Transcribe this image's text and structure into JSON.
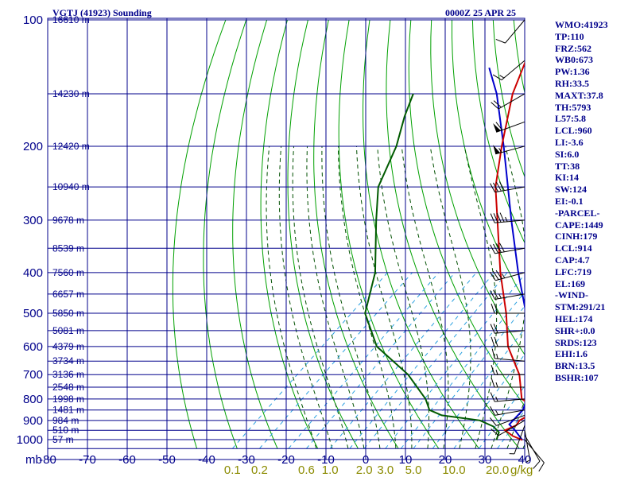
{
  "header": {
    "title": "VGTJ (41923) Sounding",
    "datetime": "0000Z 25 APR 25"
  },
  "indices": [
    "WMO:41923",
    "TP:110",
    "FRZ:562",
    "WB0:673",
    "PW:1.36",
    "RH:33.5",
    "MAXT:37.8",
    "TH:5793",
    "L57:5.8",
    "LCL:960",
    "LI:-3.6",
    "SI:6.0",
    "TT:38",
    "KI:14",
    "SW:124",
    "EI:-0.1",
    "-PARCEL-",
    "CAPE:1449",
    "CINH:179",
    "LCL:914",
    "CAP:4.7",
    "LFC:719",
    "EL:169",
    "-WIND-",
    "STM:291/21",
    "HEL:174",
    "SHR+:0.0",
    "SRDS:123",
    "EHI:1.6",
    "BRN:13.5",
    "BSHR:107"
  ],
  "colors": {
    "grid": "#00008b",
    "temperature": "#cc0000",
    "dewpoint": "#005a00",
    "parcel": "#0000cc",
    "dry_adiabat": "#00a000",
    "moist_adiabat": "#005000",
    "mixing_ratio": "#2aa0e0",
    "wind_barb": "#000000",
    "axis_text": "#00008b",
    "mixing_ratio_text": "#8b8b00"
  },
  "chart_data": {
    "type": "skew-t log-p sounding",
    "pressure_unit_label": "mb",
    "pressure_ticks": [
      100,
      200,
      300,
      400,
      500,
      600,
      700,
      800,
      900,
      1000
    ],
    "temperature_ticks": [
      -80,
      -70,
      -60,
      -50,
      -40,
      -30,
      -20,
      -10,
      0,
      10,
      20,
      30,
      40
    ],
    "mixing_ratio_unit": "g/kg",
    "mixing_ratio_labels": [
      "0.1",
      "0.2",
      "0.6",
      "1.0",
      "2.0",
      "3.0",
      "5.0",
      "10.0",
      "20.0"
    ],
    "mixing_ratio_values": [
      0.1,
      0.2,
      0.6,
      1.0,
      2.0,
      3.0,
      5.0,
      10.0,
      20.0
    ],
    "height_labels": [
      {
        "p": 100,
        "text": "16610 m"
      },
      {
        "p": 150,
        "text": "14230 m"
      },
      {
        "p": 200,
        "text": "12420 m"
      },
      {
        "p": 250,
        "text": "10940 m"
      },
      {
        "p": 300,
        "text": "9678 m"
      },
      {
        "p": 350,
        "text": "8539 m"
      },
      {
        "p": 400,
        "text": "7560 m"
      },
      {
        "p": 450,
        "text": "6657 m"
      },
      {
        "p": 500,
        "text": "5850 m"
      },
      {
        "p": 550,
        "text": "5081 m"
      },
      {
        "p": 600,
        "text": "4379 m"
      },
      {
        "p": 650,
        "text": "3734 m"
      },
      {
        "p": 700,
        "text": "3136 m"
      },
      {
        "p": 750,
        "text": "2548 m"
      },
      {
        "p": 800,
        "text": "1998 m"
      },
      {
        "p": 850,
        "text": "1481 m"
      },
      {
        "p": 900,
        "text": "984 m"
      },
      {
        "p": 950,
        "text": "510 m"
      },
      {
        "p": 1000,
        "text": "57 m"
      }
    ],
    "temperature_profile": [
      [
        1002,
        29.5
      ],
      [
        980,
        26.0
      ],
      [
        950,
        22.5
      ],
      [
        925,
        24.0
      ],
      [
        900,
        23.5
      ],
      [
        850,
        25.5
      ],
      [
        800,
        18.2
      ],
      [
        700,
        11.0
      ],
      [
        600,
        0.5
      ],
      [
        500,
        -9.0
      ],
      [
        400,
        -21.5
      ],
      [
        300,
        -36.5
      ],
      [
        250,
        -46.0
      ],
      [
        200,
        -55.5
      ],
      [
        150,
        -67.0
      ],
      [
        120,
        -74.0
      ],
      [
        105,
        -79.0
      ],
      [
        100,
        -80.0
      ],
      [
        97,
        -79.0
      ]
    ],
    "dewpoint_profile": [
      [
        1002,
        23.0
      ],
      [
        960,
        21.5
      ],
      [
        930,
        18.5
      ],
      [
        900,
        13.5
      ],
      [
        875,
        2.5
      ],
      [
        850,
        -2.0
      ],
      [
        800,
        -6.0
      ],
      [
        700,
        -17.0
      ],
      [
        600,
        -32.5
      ],
      [
        500,
        -44.5
      ],
      [
        400,
        -53.0
      ],
      [
        300,
        -67.0
      ],
      [
        250,
        -75.5
      ],
      [
        200,
        -82.0
      ],
      [
        170,
        -88.0
      ],
      [
        150,
        -92.0
      ]
    ],
    "parcel_profile": [
      [
        1002,
        29.5
      ],
      [
        950,
        25.0
      ],
      [
        920,
        22.0
      ],
      [
        850,
        21.5
      ],
      [
        800,
        19.5
      ],
      [
        700,
        14.5
      ],
      [
        600,
        6.5
      ],
      [
        500,
        -4.0
      ],
      [
        400,
        -17.0
      ],
      [
        300,
        -33.0
      ],
      [
        200,
        -55.0
      ],
      [
        150,
        -71.0
      ],
      [
        130,
        -80.0
      ]
    ],
    "wind_barbs": [
      {
        "p": 1000,
        "dir": 140,
        "spd": 10
      },
      {
        "p": 975,
        "dir": 150,
        "spd": 10
      },
      {
        "p": 950,
        "dir": 170,
        "spd": 5
      },
      {
        "p": 925,
        "dir": 200,
        "spd": 5
      },
      {
        "p": 900,
        "dir": 240,
        "spd": 10
      },
      {
        "p": 875,
        "dir": 250,
        "spd": 10
      },
      {
        "p": 850,
        "dir": 260,
        "spd": 15
      },
      {
        "p": 800,
        "dir": 265,
        "spd": 15
      },
      {
        "p": 750,
        "dir": 270,
        "spd": 15
      },
      {
        "p": 700,
        "dir": 270,
        "spd": 15
      },
      {
        "p": 650,
        "dir": 275,
        "spd": 15
      },
      {
        "p": 600,
        "dir": 270,
        "spd": 20
      },
      {
        "p": 550,
        "dir": 265,
        "spd": 20
      },
      {
        "p": 500,
        "dir": 270,
        "spd": 20
      },
      {
        "p": 450,
        "dir": 260,
        "spd": 25
      },
      {
        "p": 400,
        "dir": 255,
        "spd": 35
      },
      {
        "p": 350,
        "dir": 260,
        "spd": 40
      },
      {
        "p": 300,
        "dir": 265,
        "spd": 45
      },
      {
        "p": 250,
        "dir": 260,
        "spd": 40
      },
      {
        "p": 200,
        "dir": 255,
        "spd": 55
      },
      {
        "p": 175,
        "dir": 250,
        "spd": 60
      },
      {
        "p": 150,
        "dir": 240,
        "spd": 20
      },
      {
        "p": 125,
        "dir": 230,
        "spd": 15
      },
      {
        "p": 100,
        "dir": 220,
        "spd": 10
      }
    ]
  }
}
